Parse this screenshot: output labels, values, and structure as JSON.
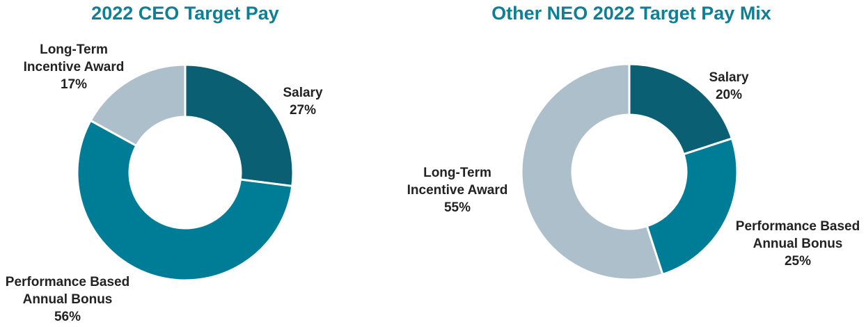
{
  "chart_data": [
    {
      "type": "pie",
      "donut": true,
      "title": "2022 CEO Target Pay",
      "title_color": "#0e7f94",
      "slices": [
        {
          "label_lines": [
            "Salary"
          ],
          "value": 27,
          "value_text": "27%",
          "color": "#0a5f72"
        },
        {
          "label_lines": [
            "Performance Based",
            "Annual Bonus"
          ],
          "value": 56,
          "value_text": "56%",
          "color": "#007d96"
        },
        {
          "label_lines": [
            "Long-Term",
            "Incentive Award"
          ],
          "value": 17,
          "value_text": "17%",
          "color": "#aebfcc"
        }
      ]
    },
    {
      "type": "pie",
      "donut": true,
      "title": "Other NEO 2022 Target Pay Mix",
      "title_color": "#0e7f94",
      "slices": [
        {
          "label_lines": [
            "Salary"
          ],
          "value": 20,
          "value_text": "20%",
          "color": "#0a5f72"
        },
        {
          "label_lines": [
            "Performance Based",
            "Annual  Bonus"
          ],
          "value": 25,
          "value_text": "25%",
          "color": "#007d96"
        },
        {
          "label_lines": [
            "Long-Term",
            "Incentive Award"
          ],
          "value": 55,
          "value_text": "55%",
          "color": "#aebfcc"
        }
      ]
    }
  ]
}
